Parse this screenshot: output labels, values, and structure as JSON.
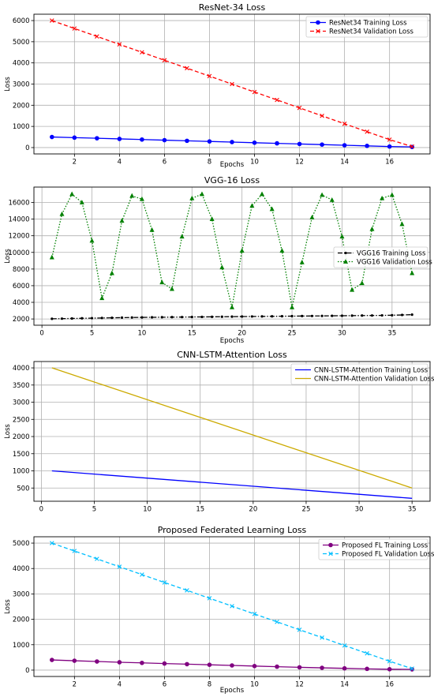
{
  "chart_data": [
    {
      "type": "line",
      "title": "ResNet-34 Loss",
      "xlabel": "Epochs",
      "ylabel": "Loss",
      "xlim": [
        0.2,
        17.8
      ],
      "ylim": [
        -300,
        6300
      ],
      "xticks": [
        2,
        4,
        6,
        8,
        10,
        12,
        14,
        16
      ],
      "yticks": [
        0,
        1000,
        2000,
        3000,
        4000,
        5000,
        6000
      ],
      "grid": true,
      "legend": "top-right",
      "x": [
        1,
        2,
        3,
        4,
        5,
        6,
        7,
        8,
        9,
        10,
        11,
        12,
        13,
        14,
        15,
        16,
        17
      ],
      "series": [
        {
          "name": "ResNet34 Training Loss",
          "color": "#0000ff",
          "style": "solid",
          "marker": "circle",
          "values": [
            500,
            470,
            440,
            410,
            380,
            350,
            320,
            290,
            260,
            230,
            200,
            170,
            140,
            110,
            80,
            50,
            30
          ]
        },
        {
          "name": "ResNet34 Validation Loss",
          "color": "#ff0000",
          "style": "dashed",
          "marker": "x",
          "values": [
            6000,
            5625,
            5250,
            4875,
            4500,
            4125,
            3750,
            3375,
            3000,
            2625,
            2250,
            1875,
            1500,
            1125,
            750,
            375,
            50
          ]
        }
      ]
    },
    {
      "type": "line",
      "title": "VGG-16 Loss",
      "xlabel": "Epochs",
      "ylabel": "Loss",
      "xlim": [
        -0.8,
        38.8
      ],
      "ylim": [
        1250,
        17850
      ],
      "xticks": [
        0,
        5,
        10,
        15,
        20,
        25,
        30,
        35
      ],
      "yticks": [
        2000,
        4000,
        6000,
        8000,
        10000,
        12000,
        14000,
        16000
      ],
      "grid": true,
      "legend": "center-right",
      "x": [
        1,
        2,
        3,
        4,
        5,
        6,
        7,
        8,
        9,
        10,
        11,
        12,
        13,
        14,
        15,
        16,
        17,
        18,
        19,
        20,
        21,
        22,
        23,
        24,
        25,
        26,
        27,
        28,
        29,
        30,
        31,
        32,
        33,
        34,
        35,
        36,
        37
      ],
      "series": [
        {
          "name": "VGG16 Training Loss",
          "color": "#000000",
          "style": "dashdot",
          "marker": "point",
          "values": [
            2020,
            2040,
            2060,
            2080,
            2100,
            2120,
            2140,
            2160,
            2180,
            2190,
            2200,
            2210,
            2220,
            2230,
            2240,
            2250,
            2260,
            2270,
            2280,
            2290,
            2300,
            2310,
            2320,
            2330,
            2340,
            2350,
            2360,
            2370,
            2380,
            2390,
            2400,
            2410,
            2420,
            2430,
            2450,
            2480,
            2520
          ]
        },
        {
          "name": "VGG16 Validation Loss",
          "color": "#008000",
          "style": "dotted",
          "marker": "triangle",
          "values": [
            9400,
            14600,
            17000,
            16000,
            11400,
            4500,
            7500,
            13800,
            16800,
            16400,
            12700,
            6400,
            5600,
            11900,
            16500,
            17000,
            14000,
            8200,
            3400,
            10200,
            15600,
            17000,
            15200,
            10200,
            3400,
            8800,
            14200,
            16900,
            16300,
            11900,
            5500,
            6300,
            12800,
            16500,
            16900,
            13400,
            7500
          ]
        }
      ]
    },
    {
      "type": "line",
      "title": "CNN-LSTM-Attention Loss",
      "xlabel": "",
      "ylabel": "Loss",
      "xlim": [
        -0.7,
        36.7
      ],
      "ylim": [
        115,
        4185
      ],
      "xticks": [
        0,
        5,
        10,
        15,
        20,
        25,
        30,
        35
      ],
      "yticks": [
        500,
        1000,
        1500,
        2000,
        2500,
        3000,
        3500,
        4000
      ],
      "grid": true,
      "legend": "top-right",
      "x": [
        1,
        35
      ],
      "series": [
        {
          "name": "CNN-LSTM-Attention Training Loss",
          "color": "#0000ff",
          "style": "solid",
          "marker": "none",
          "values": [
            1000,
            200
          ]
        },
        {
          "name": "CNN-LSTM-Attention Validation Loss",
          "color": "#ccaa00",
          "style": "solid",
          "marker": "none",
          "values": [
            4000,
            500
          ]
        }
      ]
    },
    {
      "type": "line",
      "title": "Proposed Federated Learning Loss",
      "xlabel": "Epochs",
      "ylabel": "Loss",
      "xlim": [
        0.2,
        17.8
      ],
      "ylim": [
        -250,
        5250
      ],
      "xticks": [
        2,
        4,
        6,
        8,
        10,
        12,
        14,
        16
      ],
      "yticks": [
        0,
        1000,
        2000,
        3000,
        4000,
        5000
      ],
      "grid": true,
      "legend": "top-right",
      "x": [
        1,
        2,
        3,
        4,
        5,
        6,
        7,
        8,
        9,
        10,
        11,
        12,
        13,
        14,
        15,
        16,
        17
      ],
      "series": [
        {
          "name": "Proposed FL Training Loss",
          "color": "#800080",
          "style": "solid",
          "marker": "circle",
          "values": [
            400,
            370,
            340,
            310,
            285,
            260,
            235,
            210,
            185,
            160,
            135,
            110,
            90,
            70,
            50,
            35,
            30
          ]
        },
        {
          "name": "Proposed FL Validation Loss",
          "color": "#00bfff",
          "style": "dashed",
          "marker": "x",
          "values": [
            5000,
            4690,
            4380,
            4070,
            3760,
            3450,
            3140,
            2830,
            2520,
            2210,
            1900,
            1590,
            1280,
            970,
            660,
            350,
            60
          ]
        }
      ]
    }
  ]
}
